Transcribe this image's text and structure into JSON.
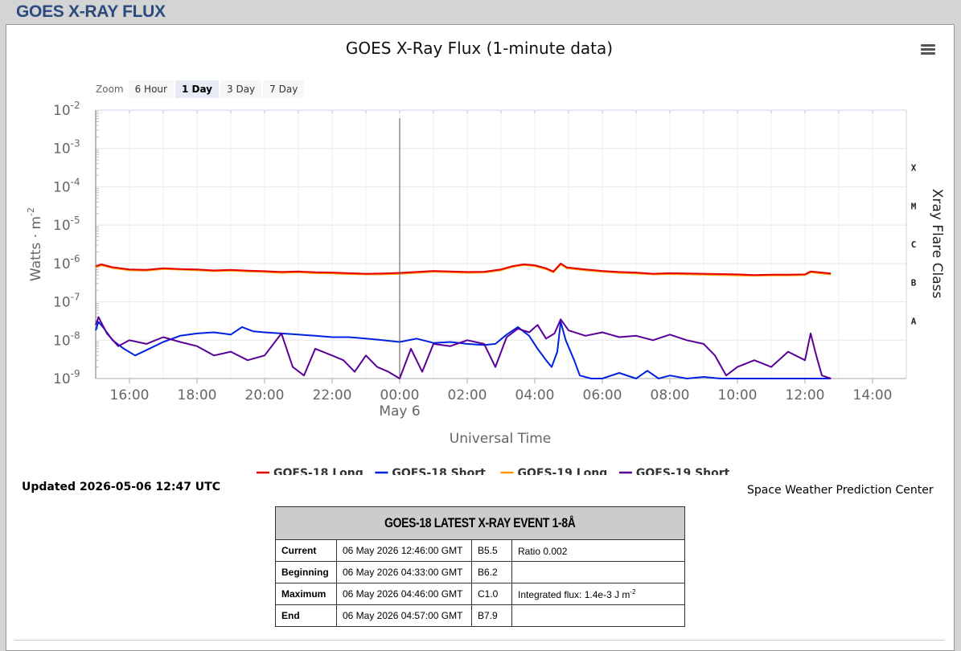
{
  "page_title": "GOES X-RAY FLUX",
  "zoom": {
    "label": "Zoom",
    "buttons": [
      "6 Hour",
      "1 Day",
      "3 Day",
      "7 Day"
    ],
    "active": "1 Day"
  },
  "updated": "Updated 2026-05-06 12:47 UTC",
  "credit": "Space Weather Prediction Center",
  "chart_data": {
    "type": "line",
    "title": "GOES X-Ray Flux (1-minute data)",
    "xlabel": "Universal Time",
    "ylabel": "Watts · m",
    "ylabel_sup": "-2",
    "y2label": "Xray Flare Class",
    "y_scale": "log",
    "ylim": [
      1e-09,
      0.01
    ],
    "y_ticks": [
      {
        "base": "10",
        "exp": "-2"
      },
      {
        "base": "10",
        "exp": "-3"
      },
      {
        "base": "10",
        "exp": "-4"
      },
      {
        "base": "10",
        "exp": "-5"
      },
      {
        "base": "10",
        "exp": "-6"
      },
      {
        "base": "10",
        "exp": "-7"
      },
      {
        "base": "10",
        "exp": "-8"
      },
      {
        "base": "10",
        "exp": "-9"
      }
    ],
    "flare_classes": [
      "X",
      "M",
      "C",
      "B",
      "A"
    ],
    "xlim": [
      "2026-05-05 15:00",
      "2026-05-06 15:00"
    ],
    "x_ticks": [
      "16:00",
      "18:00",
      "20:00",
      "22:00",
      "00:00",
      "02:00",
      "04:00",
      "06:00",
      "08:00",
      "10:00",
      "12:00",
      "14:00"
    ],
    "x_date_label": "May 6",
    "crosshair_x": "2026-05-06 00:00",
    "grid": true,
    "legend_position": "bottom",
    "series": [
      {
        "name": "GOES-18 Long",
        "color": "#e60000",
        "x": [
          "2026-05-05 15:00",
          "2026-05-05 15:10",
          "2026-05-05 15:30",
          "2026-05-05 16:00",
          "2026-05-05 16:30",
          "2026-05-05 17:00",
          "2026-05-05 17:30",
          "2026-05-05 18:00",
          "2026-05-05 18:30",
          "2026-05-05 19:00",
          "2026-05-05 19:30",
          "2026-05-05 20:00",
          "2026-05-05 20:30",
          "2026-05-05 21:00",
          "2026-05-05 21:30",
          "2026-05-05 22:00",
          "2026-05-05 22:30",
          "2026-05-05 23:00",
          "2026-05-05 23:30",
          "2026-05-06 00:00",
          "2026-05-06 00:30",
          "2026-05-06 01:00",
          "2026-05-06 01:30",
          "2026-05-06 02:00",
          "2026-05-06 02:30",
          "2026-05-06 03:00",
          "2026-05-06 03:20",
          "2026-05-06 03:40",
          "2026-05-06 04:00",
          "2026-05-06 04:20",
          "2026-05-06 04:33",
          "2026-05-06 04:46",
          "2026-05-06 04:57",
          "2026-05-06 05:30",
          "2026-05-06 06:00",
          "2026-05-06 06:30",
          "2026-05-06 07:00",
          "2026-05-06 07:30",
          "2026-05-06 08:00",
          "2026-05-06 08:30",
          "2026-05-06 09:00",
          "2026-05-06 09:30",
          "2026-05-06 10:00",
          "2026-05-06 10:30",
          "2026-05-06 11:00",
          "2026-05-06 11:30",
          "2026-05-06 12:00",
          "2026-05-06 12:10",
          "2026-05-06 12:30",
          "2026-05-06 12:46"
        ],
        "y": [
          8.5e-07,
          9.5e-07,
          8e-07,
          7e-07,
          6.8e-07,
          7.5e-07,
          7.2e-07,
          7e-07,
          6.6e-07,
          6.8e-07,
          6.5e-07,
          6.3e-07,
          6e-07,
          6.2e-07,
          5.9e-07,
          5.8e-07,
          5.6e-07,
          5.4e-07,
          5.5e-07,
          5.7e-07,
          6e-07,
          6.4e-07,
          6.2e-07,
          6e-07,
          6.1e-07,
          7e-07,
          8.5e-07,
          9.5e-07,
          9e-07,
          7.5e-07,
          6.2e-07,
          1e-06,
          7.9e-07,
          7e-07,
          6.4e-07,
          6e-07,
          5.8e-07,
          5.4e-07,
          5.6e-07,
          5.5e-07,
          5.4e-07,
          5.3e-07,
          5.2e-07,
          5e-07,
          5.1e-07,
          5.1e-07,
          5.2e-07,
          6.2e-07,
          5.8e-07,
          5.5e-07
        ]
      },
      {
        "name": "GOES-18 Short",
        "color": "#0022e0",
        "x": [
          "2026-05-05 15:00",
          "2026-05-05 15:05",
          "2026-05-05 15:15",
          "2026-05-05 15:30",
          "2026-05-05 15:50",
          "2026-05-05 16:10",
          "2026-05-05 16:30",
          "2026-05-05 17:00",
          "2026-05-05 17:30",
          "2026-05-05 18:00",
          "2026-05-05 18:30",
          "2026-05-05 19:00",
          "2026-05-05 19:20",
          "2026-05-05 19:40",
          "2026-05-05 20:00",
          "2026-05-05 20:30",
          "2026-05-05 21:00",
          "2026-05-05 21:30",
          "2026-05-05 22:00",
          "2026-05-05 22:30",
          "2026-05-05 23:00",
          "2026-05-05 23:30",
          "2026-05-06 00:00",
          "2026-05-06 00:30",
          "2026-05-06 01:00",
          "2026-05-06 01:30",
          "2026-05-06 02:00",
          "2026-05-06 02:30",
          "2026-05-06 02:50",
          "2026-05-06 03:10",
          "2026-05-06 03:30",
          "2026-05-06 03:50",
          "2026-05-06 04:05",
          "2026-05-06 04:20",
          "2026-05-06 04:30",
          "2026-05-06 04:40",
          "2026-05-06 04:46",
          "2026-05-06 04:55",
          "2026-05-06 05:10",
          "2026-05-06 05:20",
          "2026-05-06 05:40",
          "2026-05-06 06:00",
          "2026-05-06 06:30",
          "2026-05-06 07:00",
          "2026-05-06 07:20",
          "2026-05-06 07:40",
          "2026-05-06 08:00",
          "2026-05-06 08:30",
          "2026-05-06 09:00",
          "2026-05-06 09:30",
          "2026-05-06 10:00",
          "2026-05-06 12:00",
          "2026-05-06 12:30",
          "2026-05-06 12:46"
        ],
        "y": [
          1.8e-08,
          3e-08,
          2e-08,
          1e-08,
          6e-09,
          4e-09,
          5.5e-09,
          9e-09,
          1.3e-08,
          1.5e-08,
          1.6e-08,
          1.4e-08,
          2.2e-08,
          1.7e-08,
          1.6e-08,
          1.5e-08,
          1.4e-08,
          1.3e-08,
          1.2e-08,
          1.2e-08,
          1.1e-08,
          1e-08,
          9e-09,
          1.1e-08,
          8.5e-09,
          9e-09,
          8e-09,
          7.5e-09,
          8e-09,
          1.4e-08,
          2.2e-08,
          1.3e-08,
          6e-09,
          3e-09,
          2e-09,
          5e-09,
          3e-08,
          1e-08,
          3e-09,
          1.2e-09,
          1e-09,
          1e-09,
          1.4e-09,
          1e-09,
          1.6e-09,
          1e-09,
          1.2e-09,
          1e-09,
          1.1e-09,
          1e-09,
          1e-09,
          1e-09,
          1e-09,
          1e-09
        ]
      },
      {
        "name": "GOES-19 Long",
        "color": "#ff9900",
        "x": [
          "2026-05-05 15:00",
          "2026-05-05 15:10",
          "2026-05-05 15:30",
          "2026-05-05 16:00",
          "2026-05-05 16:30",
          "2026-05-05 17:00",
          "2026-05-05 17:30",
          "2026-05-05 18:00",
          "2026-05-05 18:30",
          "2026-05-05 19:00",
          "2026-05-05 19:30",
          "2026-05-05 20:00",
          "2026-05-05 20:30",
          "2026-05-05 21:00",
          "2026-05-05 21:30",
          "2026-05-05 22:00",
          "2026-05-05 22:30",
          "2026-05-05 23:00",
          "2026-05-05 23:30",
          "2026-05-06 00:00",
          "2026-05-06 00:30",
          "2026-05-06 01:00",
          "2026-05-06 01:30",
          "2026-05-06 02:00",
          "2026-05-06 02:30",
          "2026-05-06 03:00",
          "2026-05-06 03:20",
          "2026-05-06 03:40",
          "2026-05-06 04:00",
          "2026-05-06 04:20",
          "2026-05-06 04:33",
          "2026-05-06 04:46",
          "2026-05-06 04:57",
          "2026-05-06 05:30",
          "2026-05-06 06:00",
          "2026-05-06 06:30",
          "2026-05-06 07:00",
          "2026-05-06 07:30",
          "2026-05-06 08:00",
          "2026-05-06 08:30",
          "2026-05-06 09:00",
          "2026-05-06 09:30",
          "2026-05-06 10:00",
          "2026-05-06 10:30",
          "2026-05-06 11:00",
          "2026-05-06 11:30",
          "2026-05-06 12:00",
          "2026-05-06 12:10",
          "2026-05-06 12:30",
          "2026-05-06 12:46"
        ],
        "y": [
          8e-07,
          9e-07,
          7.6e-07,
          6.7e-07,
          6.5e-07,
          7.2e-07,
          6.9e-07,
          6.7e-07,
          6.3e-07,
          6.5e-07,
          6.2e-07,
          6e-07,
          5.7e-07,
          5.9e-07,
          5.6e-07,
          5.5e-07,
          5.3e-07,
          5.2e-07,
          5.2e-07,
          5.4e-07,
          5.7e-07,
          6.1e-07,
          5.9e-07,
          5.7e-07,
          5.8e-07,
          6.7e-07,
          8.1e-07,
          9.1e-07,
          8.6e-07,
          7.1e-07,
          5.9e-07,
          9.5e-07,
          7.5e-07,
          6.7e-07,
          6.1e-07,
          5.7e-07,
          5.5e-07,
          5.2e-07,
          5.3e-07,
          5.2e-07,
          5.1e-07,
          5e-07,
          4.9e-07,
          4.8e-07,
          4.9e-07,
          4.9e-07,
          5e-07,
          5.9e-07,
          5.5e-07,
          5.2e-07
        ]
      },
      {
        "name": "GOES-19 Short",
        "color": "#5a0099",
        "x": [
          "2026-05-05 15:00",
          "2026-05-05 15:05",
          "2026-05-05 15:20",
          "2026-05-05 15:40",
          "2026-05-05 16:00",
          "2026-05-05 16:30",
          "2026-05-05 17:00",
          "2026-05-05 17:30",
          "2026-05-05 18:00",
          "2026-05-05 18:30",
          "2026-05-05 19:00",
          "2026-05-05 19:30",
          "2026-05-05 20:00",
          "2026-05-05 20:30",
          "2026-05-05 20:50",
          "2026-05-05 21:10",
          "2026-05-05 21:30",
          "2026-05-05 22:00",
          "2026-05-05 22:20",
          "2026-05-05 22:40",
          "2026-05-05 23:00",
          "2026-05-05 23:20",
          "2026-05-05 23:40",
          "2026-05-06 00:00",
          "2026-05-06 00:20",
          "2026-05-06 00:40",
          "2026-05-06 01:00",
          "2026-05-06 01:30",
          "2026-05-06 02:00",
          "2026-05-06 02:30",
          "2026-05-06 02:50",
          "2026-05-06 03:10",
          "2026-05-06 03:30",
          "2026-05-06 03:50",
          "2026-05-06 04:05",
          "2026-05-06 04:20",
          "2026-05-06 04:35",
          "2026-05-06 04:46",
          "2026-05-06 05:00",
          "2026-05-06 05:30",
          "2026-05-06 06:00",
          "2026-05-06 06:30",
          "2026-05-06 07:00",
          "2026-05-06 07:30",
          "2026-05-06 08:00",
          "2026-05-06 08:30",
          "2026-05-06 09:00",
          "2026-05-06 09:20",
          "2026-05-06 09:40",
          "2026-05-06 10:00",
          "2026-05-06 10:30",
          "2026-05-06 11:00",
          "2026-05-06 11:30",
          "2026-05-06 12:00",
          "2026-05-06 12:10",
          "2026-05-06 12:20",
          "2026-05-06 12:30",
          "2026-05-06 12:46"
        ],
        "y": [
          2.5e-08,
          4e-08,
          1.5e-08,
          7e-09,
          1e-08,
          8e-09,
          1.2e-08,
          9e-09,
          7e-09,
          4e-09,
          5e-09,
          3e-09,
          4e-09,
          1.5e-08,
          2e-09,
          1.2e-09,
          6e-09,
          4e-09,
          3e-09,
          1.5e-09,
          4e-09,
          2e-09,
          1.5e-09,
          1e-09,
          6e-09,
          1.5e-09,
          8e-09,
          7e-09,
          1e-08,
          8e-09,
          2e-09,
          1.2e-08,
          2e-08,
          1.6e-08,
          2.5e-08,
          1.1e-08,
          1.5e-08,
          3.5e-08,
          1.8e-08,
          1.3e-08,
          1.6e-08,
          1.2e-08,
          1.3e-08,
          1e-08,
          1.4e-08,
          1e-08,
          8e-09,
          4e-09,
          1.2e-09,
          2e-09,
          3e-09,
          2e-09,
          5e-09,
          3e-09,
          1.5e-08,
          4e-09,
          1.2e-09,
          1e-09
        ]
      }
    ]
  },
  "event_table": {
    "title": "GOES-18 LATEST X-RAY EVENT 1-8Å",
    "rows": [
      {
        "label": "Current",
        "time": "06 May 2026 12:46:00 GMT",
        "class": "B5.5",
        "note": "Ratio 0.002",
        "note_sup": ""
      },
      {
        "label": "Beginning",
        "time": "06 May 2026 04:33:00 GMT",
        "class": "B6.2",
        "note": "",
        "note_sup": ""
      },
      {
        "label": "Maximum",
        "time": "06 May 2026 04:46:00 GMT",
        "class": "C1.0",
        "note": "Integrated flux: 1.4e-3 J m",
        "note_sup": "-2"
      },
      {
        "label": "End",
        "time": "06 May 2026 04:57:00 GMT",
        "class": "B7.9",
        "note": "",
        "note_sup": ""
      }
    ]
  }
}
